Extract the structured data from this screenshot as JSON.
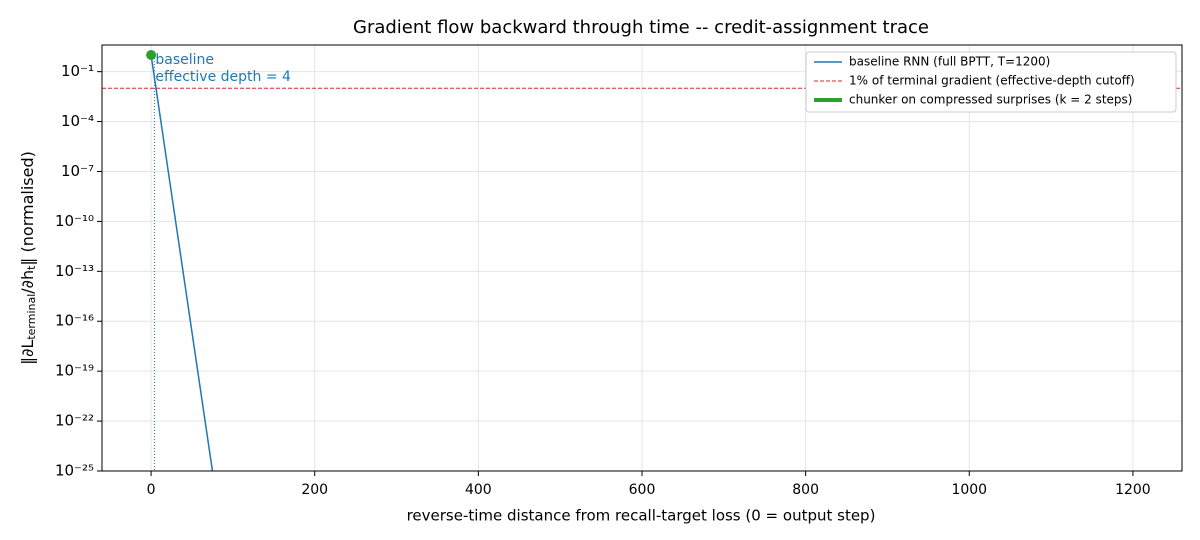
{
  "chart_data": {
    "type": "line",
    "title": "Gradient flow backward through time -- credit-assignment trace",
    "xlabel": "reverse-time distance from recall-target loss (0 = output step)",
    "ylabel": [
      "‖∂L",
      "terminal",
      "/∂h",
      "t",
      "‖  (normalised)"
    ],
    "log_y": true,
    "grid": true,
    "legend": "upper right",
    "xlim": [
      -60,
      1260
    ],
    "xticks": [
      0,
      200,
      400,
      600,
      800,
      1000,
      1200
    ],
    "ylim": [
      1e-25,
      4
    ],
    "yticks": [
      {
        "value": 0.1,
        "label": "10⁻¹"
      },
      {
        "value": 0.0001,
        "label": "10⁻⁴"
      },
      {
        "value": 1e-07,
        "label": "10⁻⁷"
      },
      {
        "value": 1e-10,
        "label": "10⁻¹⁰"
      },
      {
        "value": 1e-13,
        "label": "10⁻¹³"
      },
      {
        "value": 1e-16,
        "label": "10⁻¹⁶"
      },
      {
        "value": 1e-19,
        "label": "10⁻¹⁹"
      },
      {
        "value": 1e-22,
        "label": "10⁻²²"
      },
      {
        "value": 1e-25,
        "label": "10⁻²⁵"
      }
    ],
    "series": [
      {
        "name": "baseline RNN (full BPTT, T=1200)",
        "color": "#1f77b4",
        "x": [
          0,
          75
        ],
        "values": [
          1,
          1e-25
        ]
      },
      {
        "name": "1% of terminal gradient (effective-depth cutoff)",
        "color": "#d62728",
        "hline": 0.01
      },
      {
        "name": "chunker on compressed surprises (k = 2 steps)",
        "color": "#2ca02c",
        "x": [
          0
        ],
        "values": [
          1
        ]
      }
    ],
    "vline": {
      "x": 4,
      "color": "#1f77b4"
    },
    "annotation": [
      "baseline",
      "effective depth = 4"
    ]
  }
}
